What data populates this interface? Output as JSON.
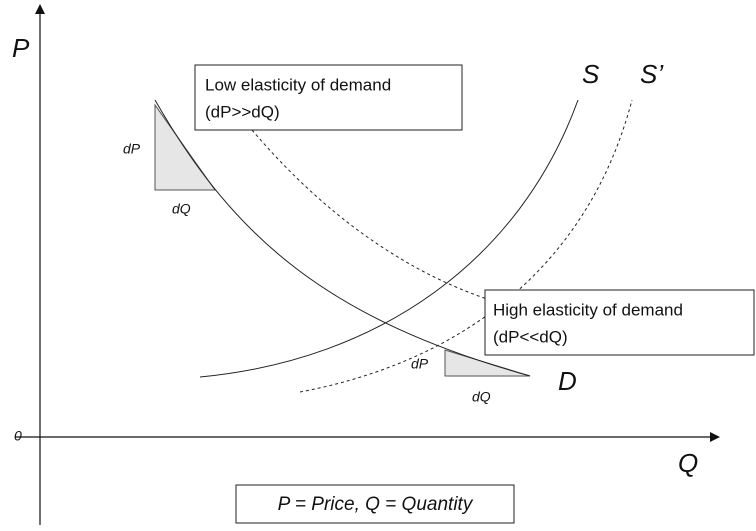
{
  "axes": {
    "y_label": "P",
    "x_label": "Q",
    "origin": "0"
  },
  "curves": {
    "supply": "S",
    "supply_shifted": "S’",
    "demand": "D"
  },
  "low_box": {
    "line1": "Low elasticity of demand",
    "line2": "(dP>>dQ)"
  },
  "high_box": {
    "line1": "High elasticity of demand",
    "line2": "(dP<<dQ)"
  },
  "left_triangle": {
    "dp": "dP",
    "dq": "dQ"
  },
  "right_triangle": {
    "dp": "dP",
    "dq": "dQ"
  },
  "legend": "P = Price, Q = Quantity"
}
